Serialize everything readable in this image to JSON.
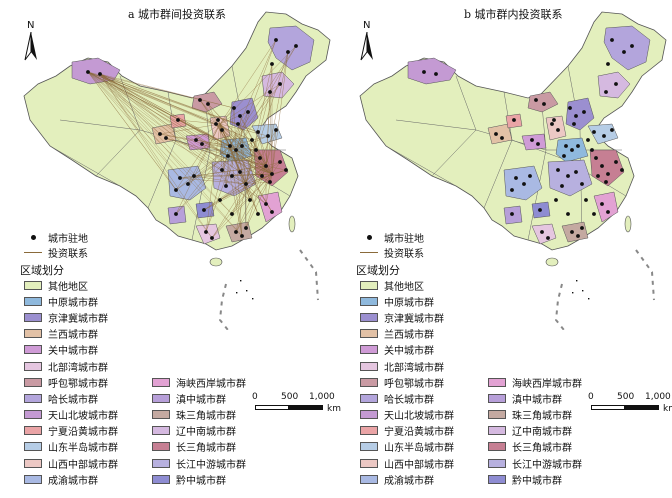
{
  "panels": [
    {
      "title": "a 城市群间投资联系"
    },
    {
      "title": "b 城市群内投资联系"
    }
  ],
  "north_label": "N",
  "legend": {
    "city_label": "城市驻地",
    "link_label": "投资联系",
    "region_title": "区域划分",
    "items": [
      {
        "label": "其他地区",
        "color": "#e3efbd"
      },
      {
        "label": "中原城市群",
        "color": "#8fb9dd"
      },
      {
        "label": "京津冀城市群",
        "color": "#9b8fd0"
      },
      {
        "label": "兰西城市群",
        "color": "#e2c1a6"
      },
      {
        "label": "关中城市群",
        "color": "#cf9bd6"
      },
      {
        "label": "北部湾城市群",
        "color": "#e5c6e0"
      },
      {
        "label": "呼包鄂城市群",
        "color": "#c99aa3"
      },
      {
        "label": "哈长城市群",
        "color": "#b3a5dc"
      },
      {
        "label": "天山北坡城市群",
        "color": "#c49ad3"
      },
      {
        "label": "宁夏沿黄城市群",
        "color": "#eaa4a6"
      },
      {
        "label": "山东半岛城市群",
        "color": "#b6cde6"
      },
      {
        "label": "山西中部城市群",
        "color": "#ecc8c4"
      },
      {
        "label": "成渝城市群",
        "color": "#a9b9e3"
      },
      {
        "label": "海峡西岸城市群",
        "color": "#e2a2d3"
      },
      {
        "label": "滇中城市群",
        "color": "#b79fd9"
      },
      {
        "label": "珠三角城市群",
        "color": "#c4a9a1"
      },
      {
        "label": "辽中南城市群",
        "color": "#d5b9e0"
      },
      {
        "label": "长三角城市群",
        "color": "#c67f93"
      },
      {
        "label": "长江中游城市群",
        "color": "#b7b0df"
      },
      {
        "label": "黔中城市群",
        "color": "#8e8cd2"
      }
    ]
  },
  "scale": {
    "ticks": [
      "0",
      "500",
      "1,000"
    ],
    "unit": "km"
  },
  "colors": {
    "link": "#8a6a3a",
    "outline": "#555555",
    "city": "#111111"
  }
}
